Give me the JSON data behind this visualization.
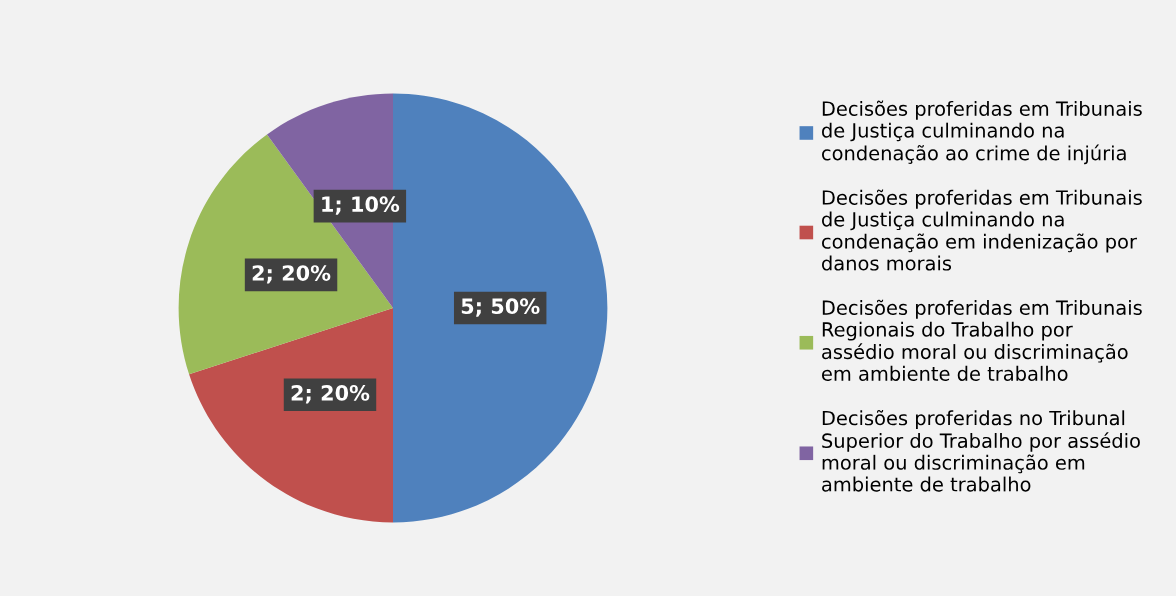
{
  "chart_data": {
    "type": "pie",
    "categories": [
      "Decisões proferidas em Tribunais de Justiça culminando na condenação ao crime de injúria",
      "Decisões proferidas em Tribunais de Justiça culminando na condenação em indenização por danos morais",
      "Decisões proferidas em Tribunais Regionais do Trabalho por assédio moral ou discriminação em ambiente de trabalho",
      "Decisões proferidas no Tribunal Superior do Trabalho por assédio moral ou discriminação em ambiente de trabalho"
    ],
    "values": [
      5,
      2,
      2,
      1
    ],
    "colors": [
      "#4f81bd",
      "#c0504d",
      "#9bbb59",
      "#8064a2"
    ],
    "value_labels": [
      "5; 50%",
      "2; 20%",
      "2; 20%",
      "1; 10%"
    ],
    "legend": "right"
  }
}
